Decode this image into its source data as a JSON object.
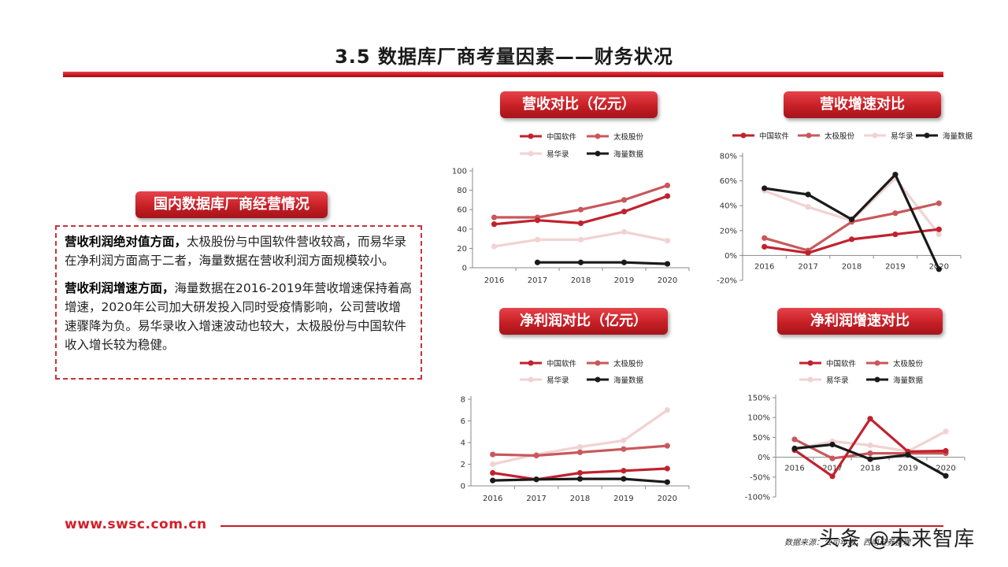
{
  "page_title": "3.5 数据库厂商考量因素——财务状况",
  "left_panel": {
    "heading": "国内数据库厂商经营情况",
    "para1_bold": "营收利润绝对值方面，",
    "para1_text": "太极股份与中国软件营收较高，而易华录在净利润方面高于二者，海量数据在营收利润方面规模较小。",
    "para2_bold": "营收利润增速方面，",
    "para2_text": "海量数据在2016-2019年营收增速保持着高增速，2020年公司加大研发投入同时受疫情影响，公司营收增速骤降为负。易华录收入增速波动也较大，太极股份与中国软件收入增长较为稳健。"
  },
  "footer": {
    "url": "www.swsc.com.cn",
    "source": "数据来源：公司年报，西南证券整理",
    "watermark": "头条 @未来智库"
  },
  "colors": {
    "中国软件": "#c0222e",
    "太极股份": "#c9585b",
    "易华录": "#f1d2d2",
    "海量数据": "#1a1a1a"
  },
  "chart_data": [
    {
      "id": "revenue",
      "type": "line",
      "title": "营收对比（亿元）",
      "categories": [
        "2016",
        "2017",
        "2018",
        "2019",
        "2020"
      ],
      "ylim": [
        0,
        100
      ],
      "yticks": [
        "0",
        "20",
        "40",
        "60",
        "80",
        "100"
      ],
      "ytick_values": [
        0,
        20,
        40,
        60,
        80,
        100
      ],
      "series": [
        {
          "name": "中国软件",
          "values": [
            45,
            49,
            46,
            58,
            74
          ]
        },
        {
          "name": "太极股份",
          "values": [
            52,
            52,
            60,
            70,
            85
          ]
        },
        {
          "name": "易华录",
          "values": [
            22,
            29,
            29,
            37,
            28
          ]
        },
        {
          "name": "海量数据",
          "values": [
            null,
            5.5,
            5.5,
            5.5,
            4
          ]
        }
      ]
    },
    {
      "id": "revenue_growth",
      "type": "line",
      "title": "营收增速对比",
      "categories": [
        "2016",
        "2017",
        "2018",
        "2019",
        "2020"
      ],
      "ylim": [
        -20,
        80
      ],
      "yticks": [
        "-20%",
        "0%",
        "20%",
        "40%",
        "60%",
        "80%"
      ],
      "ytick_values": [
        -20,
        0,
        20,
        40,
        60,
        80
      ],
      "series": [
        {
          "name": "中国软件",
          "values": [
            7,
            2,
            13,
            17,
            21
          ]
        },
        {
          "name": "太极股份",
          "values": [
            14,
            4,
            27,
            34,
            42
          ]
        },
        {
          "name": "易华录",
          "values": [
            52,
            39,
            28,
            62,
            17
          ]
        },
        {
          "name": "海量数据",
          "values": [
            54,
            49,
            29,
            65,
            -11
          ]
        }
      ]
    },
    {
      "id": "net_profit",
      "type": "line",
      "title": "净利润对比（亿元）",
      "categories": [
        "2016",
        "2017",
        "2018",
        "2019",
        "2020"
      ],
      "ylim": [
        0,
        8
      ],
      "yticks": [
        "0",
        "2",
        "4",
        "6",
        "8"
      ],
      "ytick_values": [
        0,
        2,
        4,
        6,
        8
      ],
      "series": [
        {
          "name": "中国软件",
          "values": [
            1.2,
            0.6,
            1.2,
            1.4,
            1.6
          ]
        },
        {
          "name": "太极股份",
          "values": [
            2.9,
            2.8,
            3.1,
            3.4,
            3.7
          ]
        },
        {
          "name": "易华录",
          "values": [
            2.0,
            2.9,
            3.6,
            4.2,
            7.0
          ]
        },
        {
          "name": "海量数据",
          "values": [
            0.5,
            0.6,
            0.65,
            0.65,
            0.35
          ]
        }
      ]
    },
    {
      "id": "net_profit_growth",
      "type": "line",
      "title": "净利润增速对比",
      "categories": [
        "2016",
        "2017",
        "2018",
        "2019",
        "2020"
      ],
      "ylim": [
        -100,
        150
      ],
      "yticks": [
        "-100%",
        "-50%",
        "0%",
        "50%",
        "100%",
        "150%"
      ],
      "ytick_values": [
        -100,
        -50,
        0,
        50,
        100,
        150
      ],
      "series": [
        {
          "name": "中国软件",
          "values": [
            18,
            -48,
            97,
            14,
            16
          ]
        },
        {
          "name": "太极股份",
          "values": [
            45,
            -3,
            10,
            10,
            10
          ]
        },
        {
          "name": "易华录",
          "values": [
            20,
            40,
            30,
            15,
            65
          ]
        },
        {
          "name": "海量数据",
          "values": [
            22,
            32,
            -5,
            6,
            -47
          ]
        }
      ]
    }
  ]
}
